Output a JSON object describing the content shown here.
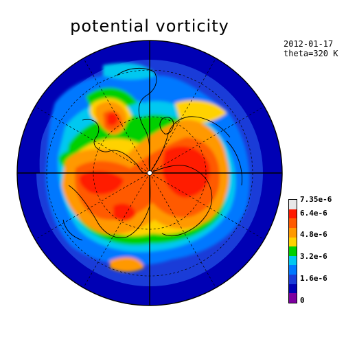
{
  "title": "potential vorticity",
  "meta": {
    "date": "2012-01-17",
    "theta": "theta=320 K"
  },
  "map": {
    "projection": "north-polar-stereographic",
    "graticules": "dashed",
    "coastlines": true,
    "center_marker": "pole"
  },
  "colorbar": {
    "colors": [
      "#e8e8e8",
      "#ff1a00",
      "#ff5a00",
      "#ff9900",
      "#ffd200",
      "#00d000",
      "#00c8f0",
      "#0078ff",
      "#1a3cd8",
      "#0000b4",
      "#7d00a0"
    ],
    "labels": [
      "7.35e-6",
      "6.4e-6",
      "4.8e-6",
      "3.2e-6",
      "1.6e-6",
      "0"
    ]
  },
  "palette": {
    "low": "#0000b4",
    "mid_low": "#1a3cd8",
    "blue": "#0078ff",
    "cyan": "#00c8f0",
    "green": "#00d000",
    "yellow": "#ffd200",
    "orange": "#ff9900",
    "dark_orange": "#ff5a00",
    "red": "#ff1a00"
  }
}
